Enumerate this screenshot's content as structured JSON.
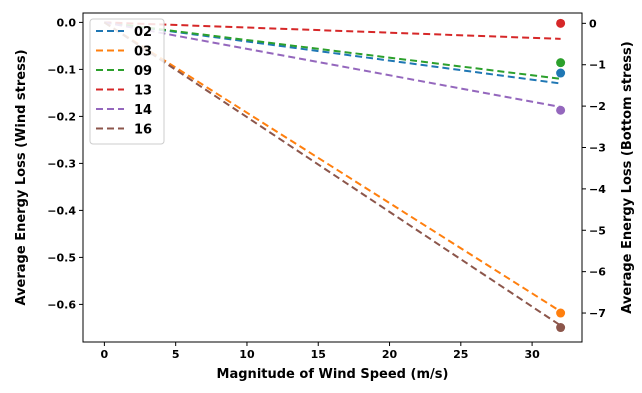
{
  "chart_data": {
    "type": "line",
    "title": "",
    "xlabel": "Magnitude of Wind Speed (m/s)",
    "ylabel_left": "Average Energy Loss (Wind stress)",
    "ylabel_right": "Average Energy Loss (Bottom stress)",
    "xlim": [
      -1.5,
      33.5
    ],
    "ylim_left": [
      -0.68,
      0.02
    ],
    "ylim_right": [
      -7.7,
      0.25
    ],
    "xticks": [
      0,
      5,
      10,
      15,
      20,
      25,
      30
    ],
    "yticks_left": [
      0.0,
      -0.1,
      -0.2,
      -0.3,
      -0.4,
      -0.5,
      -0.6
    ],
    "yticks_left_labels": [
      "0.0",
      "−0.1",
      "−0.2",
      "−0.3",
      "−0.4",
      "−0.5",
      "−0.6"
    ],
    "yticks_right": [
      0,
      -1,
      -2,
      -3,
      -4,
      -5,
      -6,
      -7
    ],
    "yticks_right_labels": [
      "0",
      "−1",
      "−2",
      "−3",
      "−4",
      "−5",
      "−6",
      "−7"
    ],
    "grid": false,
    "legend_position": "top-left",
    "series": [
      {
        "name": "02",
        "color": "#1f77b4",
        "x": [
          0,
          32
        ],
        "y": [
          0.0,
          -0.13
        ],
        "marker_x": 32,
        "marker_y_right": -1.2
      },
      {
        "name": "03",
        "color": "#ff7f0e",
        "x": [
          0,
          32
        ],
        "y": [
          0.0,
          -0.615
        ],
        "marker_x": 32,
        "marker_y_right": -7.0
      },
      {
        "name": "09",
        "color": "#2ca02c",
        "x": [
          0,
          32
        ],
        "y": [
          0.0,
          -0.12
        ],
        "marker_x": 32,
        "marker_y_right": -0.95
      },
      {
        "name": "13",
        "color": "#d62728",
        "x": [
          0,
          32
        ],
        "y": [
          0.0,
          -0.035
        ],
        "marker_x": 32,
        "marker_y_right": 0.0
      },
      {
        "name": "14",
        "color": "#9467bd",
        "x": [
          0,
          32
        ],
        "y": [
          0.0,
          -0.18
        ],
        "marker_x": 32,
        "marker_y_right": -2.1
      },
      {
        "name": "16",
        "color": "#8c564b",
        "x": [
          0,
          32
        ],
        "y": [
          0.0,
          -0.645
        ],
        "marker_x": 32,
        "marker_y_right": -7.35
      }
    ]
  }
}
